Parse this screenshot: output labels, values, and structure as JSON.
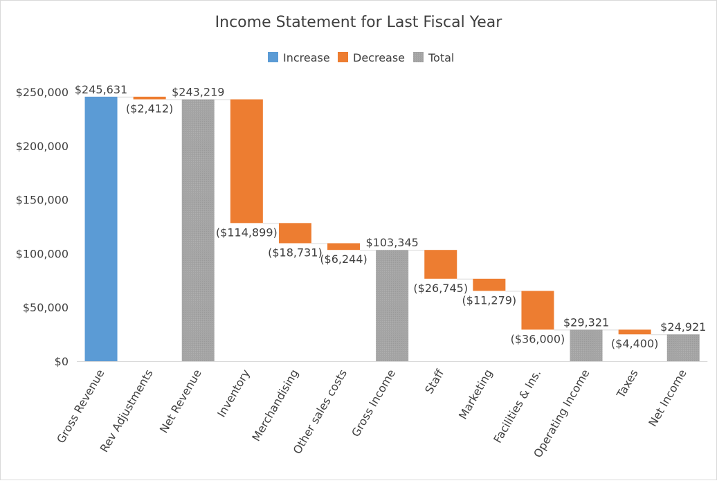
{
  "chart_data": {
    "type": "waterfall",
    "title": "Income Statement for Last Fiscal Year",
    "legend": {
      "placement": "top",
      "entries": [
        {
          "name": "Increase",
          "color": "#5b9bd5"
        },
        {
          "name": "Decrease",
          "color": "#ed7d31"
        },
        {
          "name": "Total",
          "color": "#a5a5a5"
        }
      ]
    },
    "ylim": [
      0,
      250000
    ],
    "yticks": [
      0,
      50000,
      100000,
      150000,
      200000,
      250000
    ],
    "ytick_labels": [
      "$0",
      "$50,000",
      "$100,000",
      "$150,000",
      "$200,000",
      "$250,000"
    ],
    "grid": false,
    "categories": [
      "Gross Revenue",
      "Rev Adjustments",
      "Net Revenue",
      "Inventory",
      "Merchandising",
      "Other sales costs",
      "Gross Income",
      "Staff",
      "Marketing",
      "Facilities & Ins.",
      "Operating Income",
      "Taxes",
      "Net Income"
    ],
    "values": [
      245631,
      -2412,
      243219,
      -114899,
      -18731,
      -6244,
      103345,
      -26745,
      -11279,
      -36000,
      29321,
      -4400,
      24921
    ],
    "kinds": [
      "increase",
      "decrease",
      "total",
      "decrease",
      "decrease",
      "decrease",
      "total",
      "decrease",
      "decrease",
      "decrease",
      "total",
      "decrease",
      "total"
    ],
    "data_labels": [
      "$245,631",
      "($2,412)",
      "$243,219",
      "($114,899)",
      "($18,731)",
      "($6,244)",
      "$103,345",
      "($26,745)",
      "($11,279)",
      "($36,000)",
      "$29,321",
      "($4,400)",
      "$24,921"
    ]
  }
}
